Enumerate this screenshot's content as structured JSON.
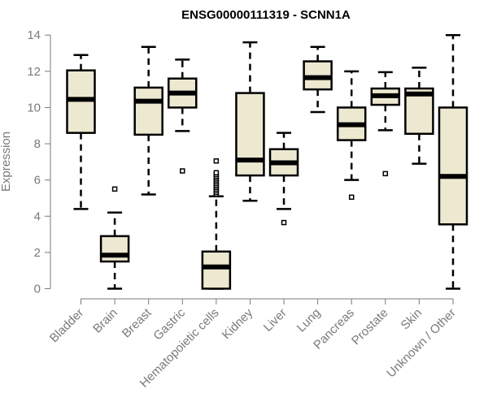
{
  "chart_data": {
    "type": "box",
    "title": "ENSG00000111319 - SCNN1A",
    "xlabel": "",
    "ylabel": "Expression",
    "ylim": [
      0,
      14
    ],
    "yticks": [
      0,
      2,
      4,
      6,
      8,
      10,
      12,
      14
    ],
    "grid": false,
    "legend": "none",
    "box_fill": "#ede8d0",
    "box_stroke": "#000000",
    "categories": [
      "Bladder",
      "Brain",
      "Breast",
      "Gastric",
      "Hematopoietic cells",
      "Kidney",
      "Liver",
      "Lung",
      "Pancreas",
      "Prostate",
      "Skin",
      "Unknown / Other"
    ],
    "boxes": [
      {
        "name": "Bladder",
        "whisker_low": 4.4,
        "q1": 8.6,
        "median": 10.45,
        "q3": 12.05,
        "whisker_high": 12.9,
        "outliers": []
      },
      {
        "name": "Brain",
        "whisker_low": 0.0,
        "q1": 1.5,
        "median": 1.85,
        "q3": 2.9,
        "whisker_high": 4.2,
        "outliers": [
          5.5
        ]
      },
      {
        "name": "Breast",
        "whisker_low": 5.2,
        "q1": 8.5,
        "median": 10.35,
        "q3": 11.1,
        "whisker_high": 13.35,
        "outliers": []
      },
      {
        "name": "Gastric",
        "whisker_low": 8.7,
        "q1": 10.0,
        "median": 10.8,
        "q3": 11.6,
        "whisker_high": 12.65,
        "outliers": [
          6.5
        ]
      },
      {
        "name": "Hematopoietic cells",
        "whisker_low": 0.0,
        "q1": 0.0,
        "median": 1.2,
        "q3": 2.05,
        "whisker_high": 5.1,
        "outliers": [
          5.2,
          5.3,
          5.4,
          5.5,
          5.6,
          5.7,
          5.8,
          5.9,
          6.0,
          6.1,
          6.2,
          6.3,
          6.4,
          7.05
        ]
      },
      {
        "name": "Kidney",
        "whisker_low": 4.85,
        "q1": 6.25,
        "median": 7.1,
        "q3": 10.8,
        "whisker_high": 13.6,
        "outliers": []
      },
      {
        "name": "Liver",
        "whisker_low": 4.4,
        "q1": 6.25,
        "median": 6.95,
        "q3": 7.7,
        "whisker_high": 8.6,
        "outliers": [
          3.65
        ]
      },
      {
        "name": "Lung",
        "whisker_low": 9.75,
        "q1": 11.0,
        "median": 11.65,
        "q3": 12.55,
        "whisker_high": 13.35,
        "outliers": []
      },
      {
        "name": "Pancreas",
        "whisker_low": 6.0,
        "q1": 8.2,
        "median": 9.05,
        "q3": 10.0,
        "whisker_high": 12.0,
        "outliers": [
          5.05
        ]
      },
      {
        "name": "Prostate",
        "whisker_low": 8.75,
        "q1": 10.15,
        "median": 10.65,
        "q3": 11.05,
        "whisker_high": 11.95,
        "outliers": [
          6.35
        ]
      },
      {
        "name": "Skin",
        "whisker_low": 6.9,
        "q1": 8.55,
        "median": 10.75,
        "q3": 11.05,
        "whisker_high": 12.2,
        "outliers": []
      },
      {
        "name": "Unknown / Other",
        "whisker_low": 0.0,
        "q1": 3.55,
        "median": 6.2,
        "q3": 10.0,
        "whisker_high": 14.0,
        "outliers": []
      }
    ]
  }
}
